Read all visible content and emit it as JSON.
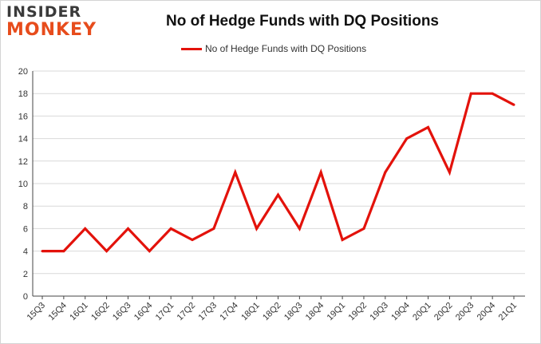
{
  "brand": {
    "line1": "INSIDER",
    "line2": "MONKEY"
  },
  "colors": {
    "series": "#e3120b",
    "grid": "#d9d9d9",
    "axis": "#444444",
    "brand_dark": "#3a3a3a",
    "brand_accent": "#e74c1c"
  },
  "chart_data": {
    "type": "line",
    "title": "No of Hedge Funds with DQ Positions",
    "xlabel": "",
    "ylabel": "",
    "legend_position": "top-center",
    "grid": true,
    "ylim": [
      0,
      20
    ],
    "yticks": [
      0,
      2,
      4,
      6,
      8,
      10,
      12,
      14,
      16,
      18,
      20
    ],
    "categories": [
      "15Q3",
      "15Q4",
      "16Q1",
      "16Q2",
      "16Q3",
      "16Q4",
      "17Q1",
      "17Q2",
      "17Q3",
      "17Q4",
      "18Q1",
      "18Q2",
      "18Q3",
      "18Q4",
      "19Q1",
      "19Q2",
      "19Q3",
      "19Q4",
      "20Q1",
      "20Q2",
      "20Q3",
      "20Q4",
      "21Q1"
    ],
    "series": [
      {
        "name": "No of Hedge Funds with DQ Positions",
        "values": [
          4,
          4,
          6,
          4,
          6,
          4,
          6,
          5,
          6,
          11,
          6,
          9,
          6,
          11,
          5,
          6,
          11,
          14,
          15,
          11,
          18,
          18,
          17
        ]
      }
    ]
  }
}
